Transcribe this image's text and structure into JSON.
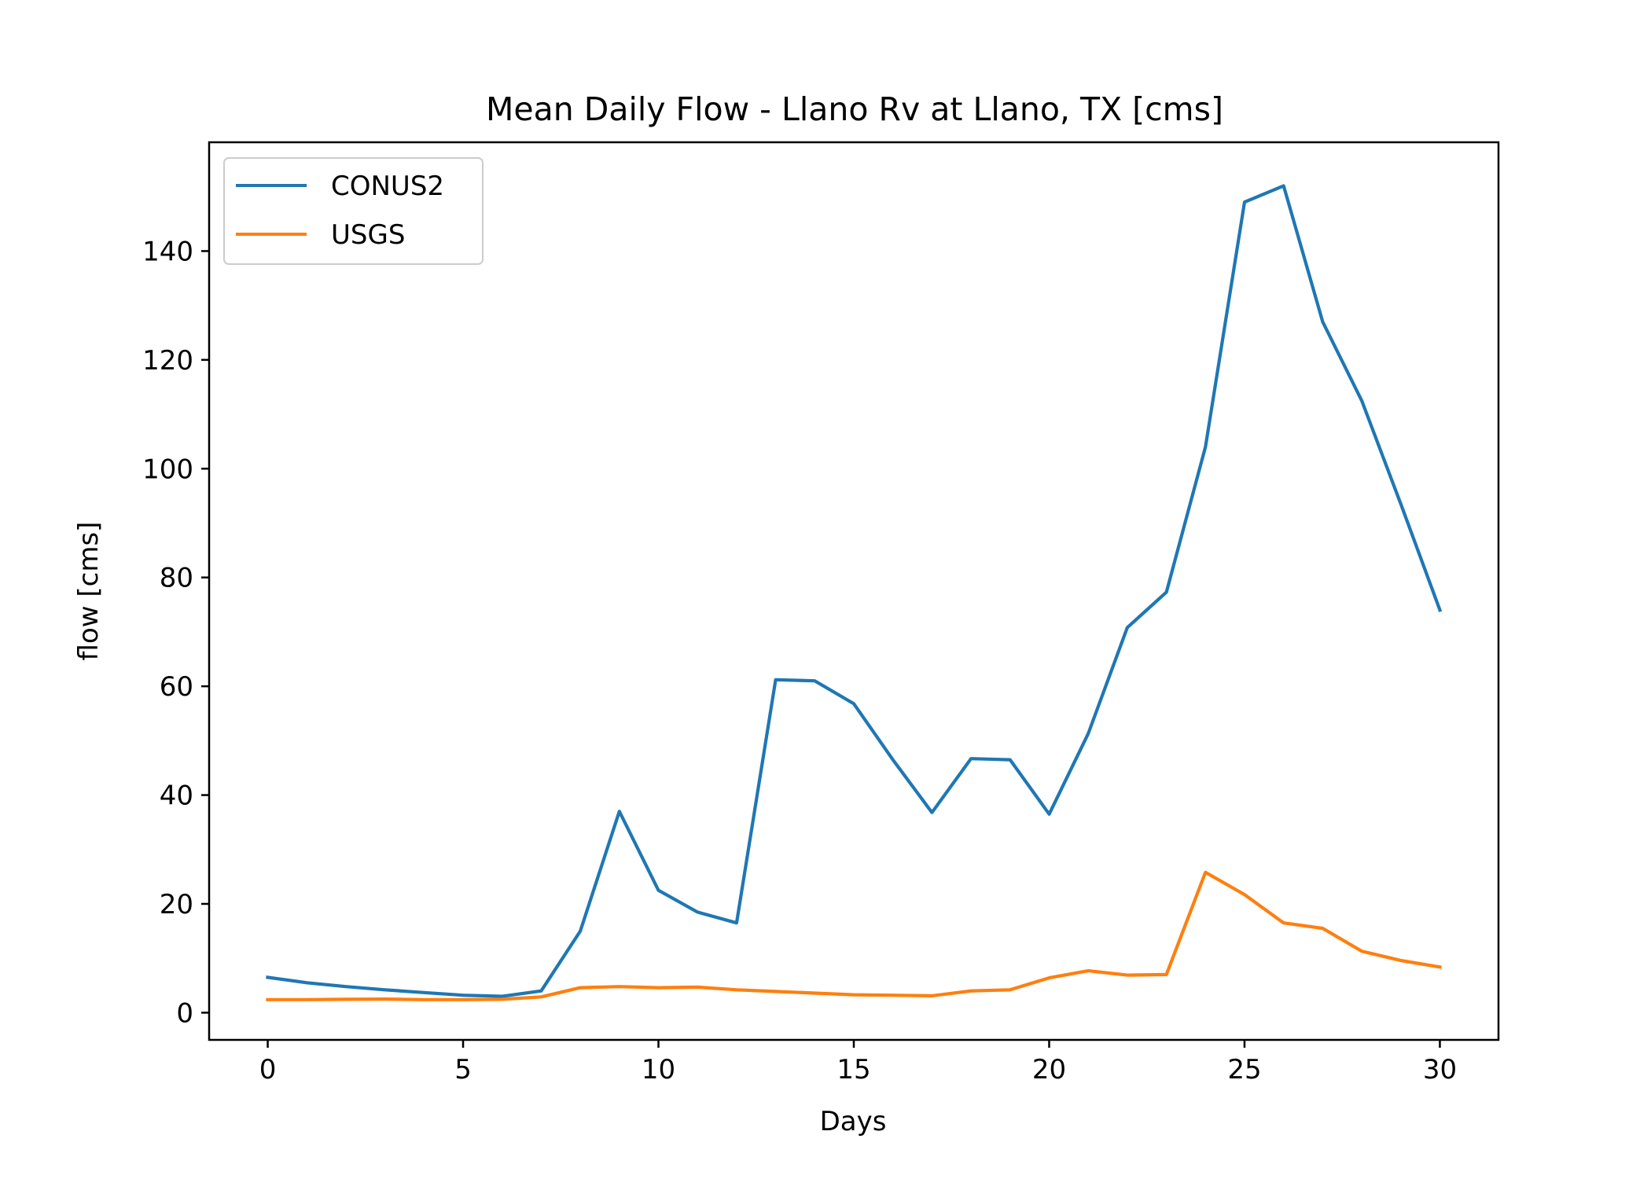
{
  "chart_data": {
    "type": "line",
    "title": "Mean Daily Flow - Llano Rv at Llano, TX [cms]",
    "xlabel": "Days",
    "ylabel": "flow [cms]",
    "xlim": [
      -1.5,
      31.5
    ],
    "ylim": [
      -5,
      160
    ],
    "xticks": [
      0,
      5,
      10,
      15,
      20,
      25,
      30
    ],
    "yticks": [
      0,
      20,
      40,
      60,
      80,
      100,
      120,
      140
    ],
    "grid": false,
    "legend_position": "top-left",
    "x": [
      0,
      1,
      2,
      3,
      4,
      5,
      6,
      7,
      8,
      9,
      10,
      11,
      12,
      13,
      14,
      15,
      16,
      17,
      18,
      19,
      20,
      21,
      22,
      23,
      24,
      25,
      26,
      27,
      28,
      29,
      30
    ],
    "series": [
      {
        "name": "CONUS2",
        "color": "#1f77b4",
        "values": [
          6.5,
          5.5,
          4.8,
          4.2,
          3.7,
          3.2,
          3.0,
          4.0,
          15.0,
          37.0,
          22.5,
          18.5,
          16.5,
          61.2,
          61.0,
          56.8,
          46.5,
          36.8,
          46.7,
          46.5,
          36.5,
          51.3,
          70.8,
          77.3,
          104.0,
          149.0,
          152.0,
          127.0,
          112.5,
          93.5,
          74.0
        ]
      },
      {
        "name": "USGS",
        "color": "#ff7f0e",
        "values": [
          2.4,
          2.4,
          2.45,
          2.5,
          2.4,
          2.4,
          2.45,
          2.9,
          4.6,
          4.8,
          4.6,
          4.7,
          4.2,
          3.9,
          3.6,
          3.3,
          3.2,
          3.1,
          4.0,
          4.2,
          6.4,
          7.7,
          6.9,
          7.0,
          25.8,
          21.7,
          16.5,
          15.5,
          11.3,
          9.6,
          8.4
        ]
      }
    ]
  }
}
